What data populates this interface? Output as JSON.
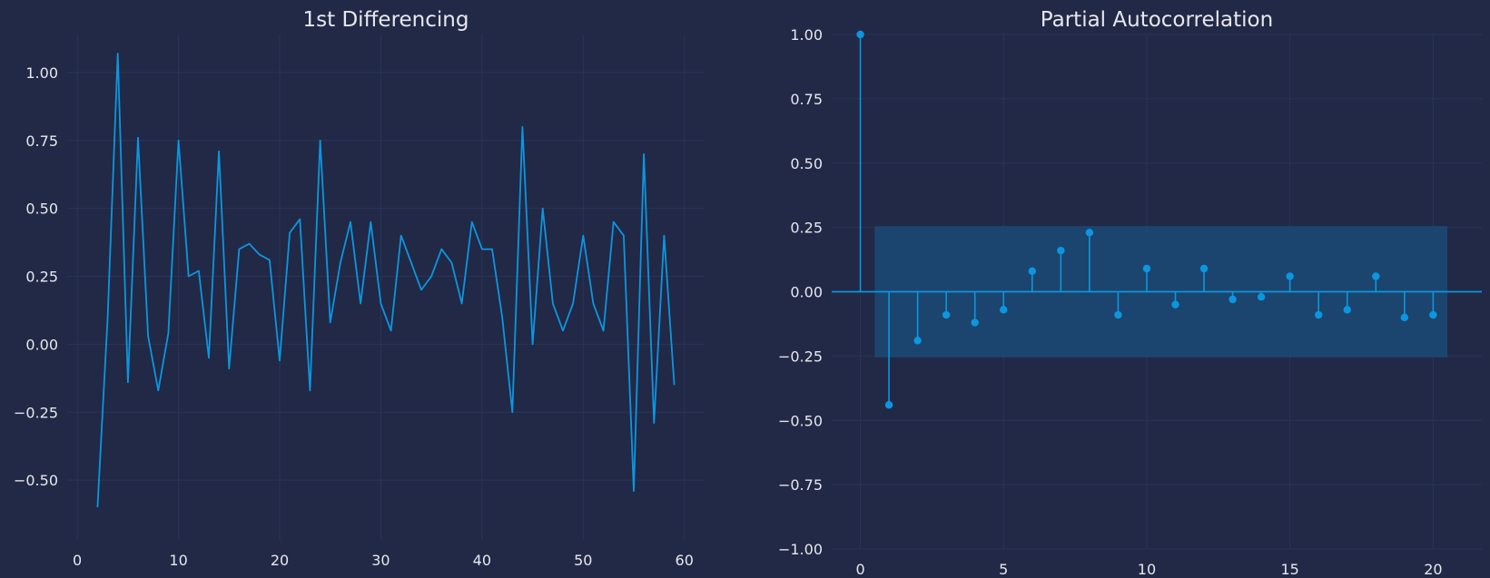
{
  "colors": {
    "background": "#212946",
    "grid": "#2a3459",
    "text": "#e6e8ee",
    "series": "#0c96e0",
    "confidence_band": "#1a4a75"
  },
  "chart_data": [
    {
      "type": "line",
      "title": "1st Differencing",
      "xlabel": "",
      "ylabel": "",
      "xlim": [
        -1,
        62
      ],
      "ylim": [
        -0.72,
        1.14
      ],
      "grid": true,
      "xticks": [
        0,
        10,
        20,
        30,
        40,
        50,
        60
      ],
      "xtick_labels": [
        "0",
        "10",
        "20",
        "30",
        "40",
        "50",
        "60"
      ],
      "yticks": [
        -0.5,
        -0.25,
        0.0,
        0.25,
        0.5,
        0.75,
        1.0
      ],
      "ytick_labels": [
        "−0.50",
        "−0.25",
        "0.00",
        "0.25",
        "0.50",
        "0.75",
        "1.00"
      ],
      "series": [
        {
          "x": [
            2,
            3,
            4,
            5,
            6,
            7,
            8,
            9,
            10,
            11,
            12,
            13,
            14,
            15,
            16,
            17,
            18,
            19,
            20,
            21,
            22,
            23,
            24,
            25,
            26,
            27,
            28,
            29,
            30,
            31,
            32,
            33,
            34,
            35,
            36,
            37,
            38,
            39,
            40,
            41,
            42,
            43,
            44,
            45,
            46,
            47,
            48,
            49,
            50,
            51,
            52,
            53,
            54,
            55,
            56,
            57,
            58,
            59
          ],
          "y": [
            -0.6,
            0.1,
            1.07,
            -0.14,
            0.76,
            0.03,
            -0.17,
            0.04,
            0.75,
            0.25,
            0.27,
            -0.05,
            0.71,
            -0.09,
            0.35,
            0.37,
            0.33,
            0.31,
            -0.06,
            0.41,
            0.46,
            -0.17,
            0.75,
            0.08,
            0.3,
            0.45,
            0.15,
            0.45,
            0.15,
            0.05,
            0.4,
            0.3,
            0.2,
            0.25,
            0.35,
            0.3,
            0.15,
            0.45,
            0.35,
            0.35,
            0.1,
            -0.25,
            0.8,
            0.0,
            0.5,
            0.15,
            0.05,
            0.15,
            0.4,
            0.15,
            0.05,
            0.45,
            0.4,
            -0.54,
            0.7,
            -0.29,
            0.4,
            -0.15
          ]
        }
      ]
    },
    {
      "type": "stem",
      "title": "Partial Autocorrelation",
      "xlabel": "",
      "ylabel": "",
      "xlim": [
        -1,
        21.7
      ],
      "ylim": [
        -1.0,
        1.0
      ],
      "grid": true,
      "xticks": [
        0,
        5,
        10,
        15,
        20
      ],
      "xtick_labels": [
        "0",
        "5",
        "10",
        "15",
        "20"
      ],
      "yticks": [
        -1.0,
        -0.75,
        -0.5,
        -0.25,
        0.0,
        0.25,
        0.5,
        0.75,
        1.0
      ],
      "ytick_labels": [
        "−1.00",
        "−0.75",
        "−0.50",
        "−0.25",
        "0.00",
        "0.25",
        "0.50",
        "0.75",
        "1.00"
      ],
      "confidence_band": {
        "x": [
          0.5,
          20.5
        ],
        "y": [
          -0.255,
          0.255
        ]
      },
      "lags": [
        0,
        1,
        2,
        3,
        4,
        5,
        6,
        7,
        8,
        9,
        10,
        11,
        12,
        13,
        14,
        15,
        16,
        17,
        18,
        19,
        20
      ],
      "values": [
        1.0,
        -0.44,
        -0.19,
        -0.09,
        -0.12,
        -0.07,
        0.08,
        0.16,
        0.23,
        -0.09,
        0.09,
        -0.05,
        0.09,
        -0.03,
        -0.02,
        0.06,
        -0.09,
        -0.07,
        0.06,
        -0.1,
        -0.09
      ]
    }
  ]
}
